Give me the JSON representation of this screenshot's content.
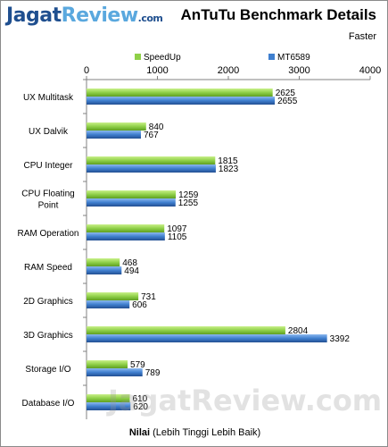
{
  "logo": {
    "part1": "Jagat",
    "part2": "Review",
    "suffix": ".com"
  },
  "title": "AnTuTu Benchmark Details",
  "subtitle": "Faster",
  "watermark": "JagatReview.com",
  "chart_data": {
    "type": "bar",
    "orientation": "horizontal",
    "categories": [
      "UX Multitask",
      "UX Dalvik",
      "CPU Integer",
      "CPU Floating Point",
      "RAM Operation",
      "RAM Speed",
      "2D Graphics",
      "3D Graphics",
      "Storage I/O",
      "Database I/O"
    ],
    "series": [
      {
        "name": "SpeedUp",
        "color": "#8fd048",
        "values": [
          2625,
          840,
          1815,
          1259,
          1097,
          468,
          731,
          2804,
          579,
          610
        ]
      },
      {
        "name": "MT6589",
        "color": "#3f7fcf",
        "values": [
          2655,
          767,
          1823,
          1255,
          1105,
          494,
          606,
          3392,
          789,
          620
        ]
      }
    ],
    "xlim": [
      0,
      4000
    ],
    "xticks": [
      0,
      1000,
      2000,
      3000,
      4000
    ],
    "xlabel_bold": "Nilai",
    "xlabel_rest": " (Lebih Tinggi Lebih Baik)",
    "legend_position": "top",
    "axis_position": "top",
    "grid": false
  }
}
